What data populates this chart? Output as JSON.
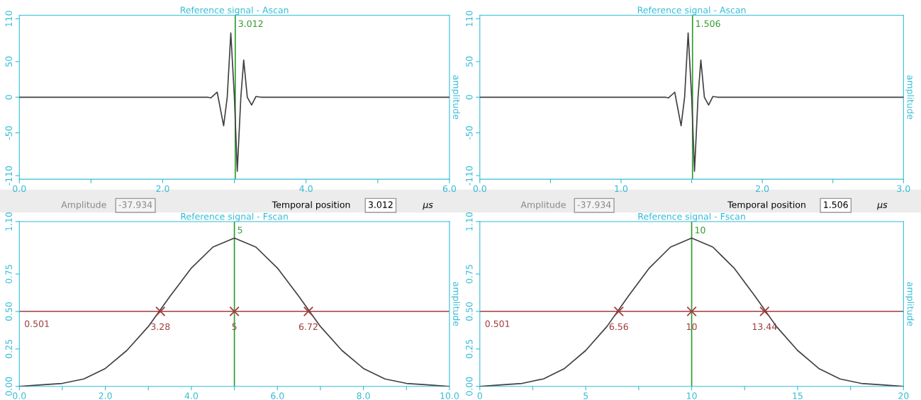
{
  "chart_data": [
    {
      "type": "line",
      "title": "Reference signal - Ascan",
      "ylabel": "amplitude",
      "x": [
        0,
        2.63,
        2.67,
        2.76,
        2.85,
        2.9,
        2.95,
        3.0,
        3.04,
        3.09,
        3.13,
        3.18,
        3.24,
        3.3,
        3.37,
        6
      ],
      "series": [
        {
          "color": "#404040",
          "values": [
            0,
            0,
            -1,
            7,
            -40,
            0,
            90,
            0,
            -104,
            0,
            52,
            0,
            -11,
            1,
            0,
            0
          ]
        }
      ],
      "xlim": [
        0,
        6
      ],
      "xticks": [
        {
          "value": 0,
          "label": "0.0"
        },
        {
          "value": 1,
          "label": null
        },
        {
          "value": 2,
          "label": "2.0"
        },
        {
          "value": 3,
          "label": null
        },
        {
          "value": 4,
          "label": "4.0"
        },
        {
          "value": 5,
          "label": null
        },
        {
          "value": 6,
          "label": "6.0"
        }
      ],
      "ylim": [
        -115,
        115
      ],
      "yticks": [
        {
          "value": -110,
          "label": "-110"
        },
        {
          "value": -50,
          "label": "-50"
        },
        0,
        50,
        110
      ],
      "ref_lines": [
        {
          "axis": "x",
          "value": 3.012,
          "label": "3.012",
          "color": "#2e9a2e"
        }
      ],
      "annotations": [
        "Amplitude",
        "-37.934",
        "Temporal position",
        "3.012",
        "µs"
      ],
      "grid": false
    },
    {
      "type": "line",
      "title": "Reference signal - Ascan",
      "ylabel": "amplitude",
      "x": [
        0,
        1.315,
        1.335,
        1.38,
        1.425,
        1.45,
        1.475,
        1.5,
        1.52,
        1.545,
        1.565,
        1.59,
        1.62,
        1.65,
        1.685,
        3
      ],
      "series": [
        {
          "color": "#404040",
          "values": [
            0,
            0,
            -1,
            7,
            -40,
            0,
            90,
            0,
            -104,
            0,
            52,
            0,
            -11,
            1,
            0,
            0
          ]
        }
      ],
      "xlim": [
        0,
        3
      ],
      "xticks": [
        {
          "value": 0,
          "label": "0.0"
        },
        {
          "value": 0.5,
          "label": null
        },
        {
          "value": 1,
          "label": "1.0"
        },
        {
          "value": 1.5,
          "label": null
        },
        {
          "value": 2,
          "label": "2.0"
        },
        {
          "value": 2.5,
          "label": null
        },
        {
          "value": 3,
          "label": "3.0"
        }
      ],
      "ylim": [
        -115,
        115
      ],
      "yticks": [
        {
          "value": -110,
          "label": "-110"
        },
        {
          "value": -50,
          "label": "-50"
        },
        0,
        50,
        110
      ],
      "ref_lines": [
        {
          "axis": "x",
          "value": 1.506,
          "label": "1.506",
          "color": "#2e9a2e"
        }
      ],
      "annotations": [
        "Amplitude",
        "-37.934",
        "Temporal position",
        "1.506",
        "µs"
      ],
      "grid": false
    },
    {
      "type": "line",
      "title": "Reference signal - Fscan",
      "ylabel": "amplitude",
      "x": [
        0,
        0.5,
        1,
        1.5,
        2,
        2.5,
        3,
        3.5,
        4,
        4.5,
        5,
        5.5,
        6,
        6.5,
        7,
        7.5,
        8,
        8.5,
        9,
        9.5,
        10
      ],
      "series": [
        {
          "color": "#404040",
          "values": [
            0,
            0.01,
            0.02,
            0.05,
            0.12,
            0.24,
            0.4,
            0.6,
            0.79,
            0.93,
            0.99,
            0.93,
            0.79,
            0.6,
            0.4,
            0.24,
            0.12,
            0.05,
            0.02,
            0.01,
            0
          ]
        }
      ],
      "annotations": [
        {
          "text": "3.28",
          "x": 3.28,
          "y": 0.501
        },
        {
          "text": "5",
          "x": 5,
          "y": 0.501
        },
        {
          "text": "6.72",
          "x": 6.72,
          "y": 0.501
        }
      ],
      "xlim": [
        0,
        10
      ],
      "xticks": [
        {
          "value": 0,
          "label": "0.0"
        },
        {
          "value": 1,
          "label": null
        },
        {
          "value": 2,
          "label": "2.0"
        },
        {
          "value": 3,
          "label": null
        },
        {
          "value": 4,
          "label": "4.0"
        },
        {
          "value": 5,
          "label": null
        },
        {
          "value": 6,
          "label": "6.0"
        },
        {
          "value": 7,
          "label": null
        },
        {
          "value": 8,
          "label": "8.0"
        },
        {
          "value": 9,
          "label": null
        },
        {
          "value": 10,
          "label": "10.0"
        }
      ],
      "ylim": [
        0,
        1.1
      ],
      "yticks": [
        {
          "value": 0,
          "label": "0.00"
        },
        {
          "value": 0.25,
          "label": "0.25"
        },
        {
          "value": 0.5,
          "label": "0.50"
        },
        {
          "value": 0.75,
          "label": "0.75"
        },
        {
          "value": 1.1,
          "label": "1.10"
        }
      ],
      "ref_lines": [
        {
          "axis": "x",
          "value": 5,
          "label": "5",
          "color": "#2e9a2e"
        },
        {
          "axis": "y",
          "value": 0.501,
          "label": "0.501",
          "color": "#a03c3c"
        }
      ],
      "grid": false
    },
    {
      "type": "line",
      "title": "Reference signal - Fscan",
      "ylabel": "amplitude",
      "x": [
        0,
        1,
        2,
        3,
        4,
        5,
        6,
        7,
        8,
        9,
        10,
        11,
        12,
        13,
        14,
        15,
        16,
        17,
        18,
        19,
        20
      ],
      "series": [
        {
          "color": "#404040",
          "values": [
            0,
            0.01,
            0.02,
            0.05,
            0.12,
            0.24,
            0.4,
            0.6,
            0.79,
            0.93,
            0.99,
            0.93,
            0.79,
            0.6,
            0.4,
            0.24,
            0.12,
            0.05,
            0.02,
            0.01,
            0
          ]
        }
      ],
      "annotations": [
        {
          "text": "6.56",
          "x": 6.56,
          "y": 0.501
        },
        {
          "text": "10",
          "x": 10,
          "y": 0.501
        },
        {
          "text": "13.44",
          "x": 13.44,
          "y": 0.501
        }
      ],
      "xlim": [
        0,
        20
      ],
      "xticks": [
        0,
        {
          "value": 2.5,
          "label": null
        },
        5,
        {
          "value": 7.5,
          "label": null
        },
        10,
        {
          "value": 12.5,
          "label": null
        },
        15,
        {
          "value": 17.5,
          "label": null
        },
        20
      ],
      "ylim": [
        0,
        1.1
      ],
      "yticks": [
        {
          "value": 0,
          "label": "0.00"
        },
        {
          "value": 0.25,
          "label": "0.25"
        },
        {
          "value": 0.5,
          "label": "0.50"
        },
        {
          "value": 0.75,
          "label": "0.75"
        },
        {
          "value": 1.1,
          "label": "1.10"
        }
      ],
      "ref_lines": [
        {
          "axis": "x",
          "value": 10,
          "label": "10",
          "color": "#2e9a2e"
        },
        {
          "axis": "y",
          "value": 0.501,
          "label": "0.501",
          "color": "#a03c3c"
        }
      ],
      "grid": false
    }
  ]
}
